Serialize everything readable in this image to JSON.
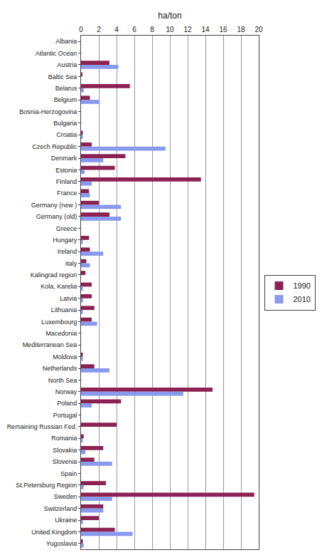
{
  "chart_data": {
    "type": "bar",
    "orientation": "horizontal",
    "xlabel": "ha/ton",
    "categories": [
      "Albania",
      "Atlantic Ocean",
      "Austria",
      "Baltic Sea",
      "Belarus",
      "Belgium",
      "Bosnia-Herzogovina",
      "Bulgaria",
      "Croatia",
      "Czech Republic",
      "Denmark",
      "Estonia",
      "Finland",
      "France",
      "Germany (new )",
      "Germany (old)",
      "Greece",
      "Hungary",
      "Ireland",
      "Italy",
      "Kalingrad region",
      "Kola, Karelia",
      "Latvia",
      "Lithuania",
      "Luxembourg",
      "Macedonia",
      "Mediterranean Sea",
      "Moldova",
      "Netherlands",
      "North Sea",
      "Norway",
      "Poland",
      "Portugal",
      "Remaining Russian Fed.",
      "Romania",
      "Slovakia",
      "Slovenia",
      "Spain",
      "St.Petersburg Region",
      "Sweden",
      "Switzerland",
      "Ukraine",
      "United Kingdom",
      "Yugoslavia"
    ],
    "series": [
      {
        "name": "1990",
        "color": "#8B2252",
        "values": [
          0.0,
          0.0,
          3.2,
          0.1,
          5.5,
          1.0,
          0.0,
          0.0,
          0.2,
          1.2,
          5.0,
          3.8,
          13.5,
          0.9,
          2.0,
          3.2,
          0.0,
          0.9,
          1.0,
          0.6,
          0.5,
          1.2,
          1.2,
          1.5,
          1.2,
          0.0,
          0.0,
          0.2,
          1.5,
          0.0,
          14.8,
          4.5,
          0.0,
          4.0,
          0.3,
          2.5,
          1.5,
          0.0,
          2.8,
          19.5,
          2.5,
          2.0,
          3.8,
          0.2
        ]
      },
      {
        "name": "2010",
        "color": "#8899EE",
        "values": [
          0.0,
          0.0,
          4.2,
          0.0,
          0.3,
          2.1,
          0.0,
          0.0,
          0.2,
          9.5,
          2.5,
          0.4,
          1.2,
          1.0,
          4.5,
          4.5,
          0.0,
          0.2,
          2.5,
          1.0,
          0.0,
          0.2,
          0.2,
          0.2,
          1.8,
          0.0,
          0.0,
          0.2,
          3.2,
          0.0,
          11.5,
          1.2,
          0.0,
          0.0,
          0.2,
          0.5,
          3.5,
          0.0,
          0.3,
          3.5,
          2.5,
          0.2,
          5.8,
          0.3
        ]
      }
    ],
    "xlim": [
      0,
      20
    ],
    "xticks": [
      0,
      2,
      4,
      6,
      8,
      10,
      12,
      14,
      16,
      18,
      20
    ],
    "grid": true,
    "legend": "right"
  }
}
